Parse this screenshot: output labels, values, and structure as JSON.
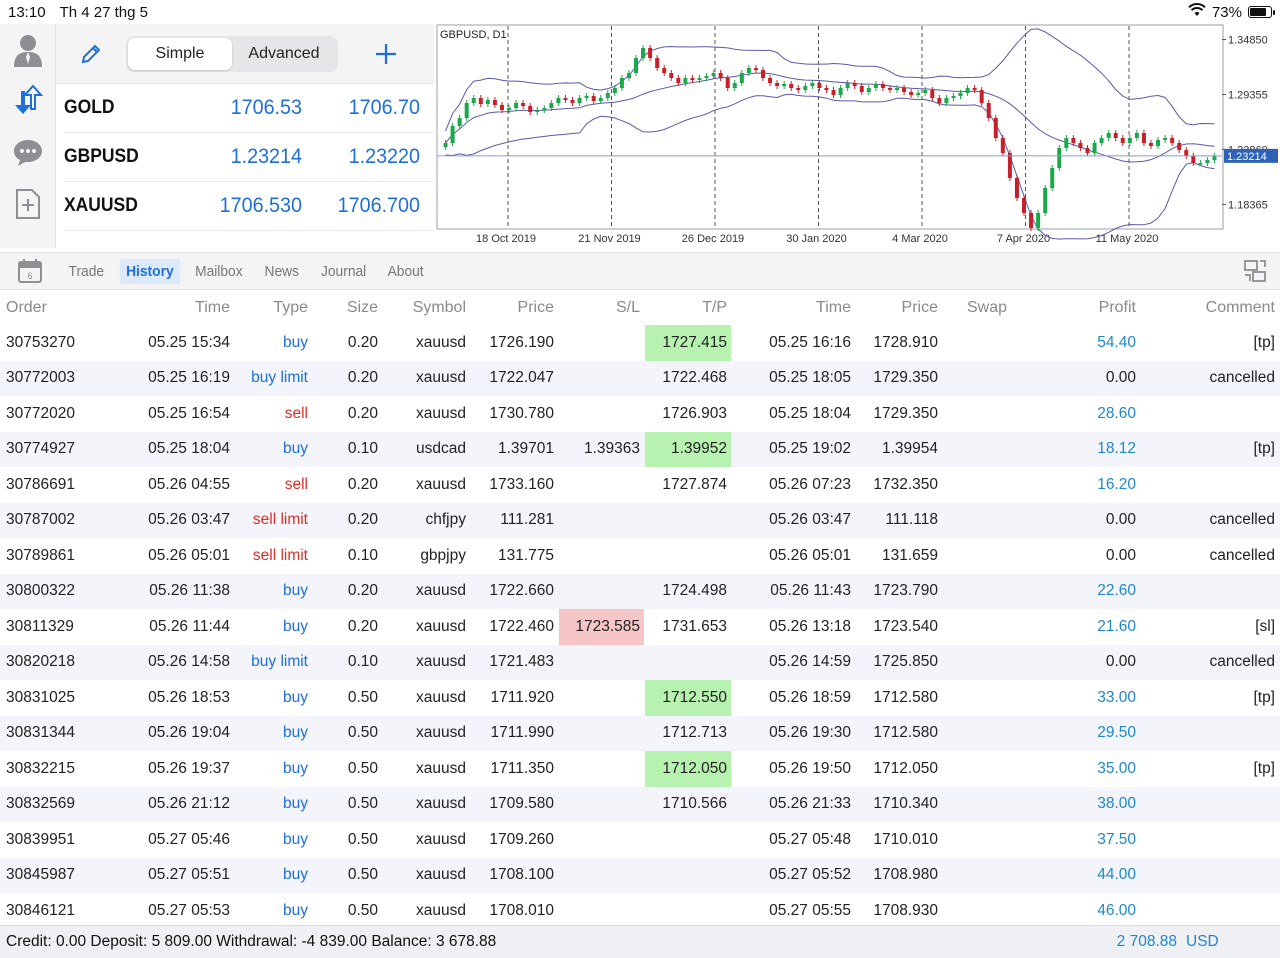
{
  "status_bar": {
    "time": "13:10",
    "date": "Th 4 27 thg 5",
    "battery": "73%"
  },
  "quotes": {
    "mode_simple": "Simple",
    "mode_advanced": "Advanced",
    "rows": [
      {
        "symbol": "GOLD",
        "bid": "1706.53",
        "ask": "1706.70"
      },
      {
        "symbol": "GBPUSD",
        "bid": "1.23214",
        "ask": "1.23220"
      },
      {
        "symbol": "XAUUSD",
        "bid": "1706.530",
        "ask": "1706.700"
      }
    ]
  },
  "chart_data": {
    "type": "candlestick",
    "title": "GBPUSD, D1",
    "current_price": "1.23214",
    "y_ticks": [
      "1.34850",
      "1.29355",
      "1.23860",
      "1.18365"
    ],
    "ylim": [
      1.16,
      1.36
    ],
    "x_labels": [
      "18 Oct 2019",
      "21 Nov 2019",
      "26 Dec 2019",
      "30 Jan 2020",
      "4 Mar 2020",
      "7 Apr 2020",
      "11 May 2020"
    ],
    "bollinger_bands": true,
    "grid": "vertical dashed",
    "close_series": [
      1.245,
      1.262,
      1.27,
      1.285,
      1.29,
      1.284,
      1.288,
      1.283,
      1.278,
      1.28,
      1.285,
      1.282,
      1.276,
      1.278,
      1.28,
      1.285,
      1.29,
      1.288,
      1.285,
      1.29,
      1.292,
      1.287,
      1.29,
      1.295,
      1.3,
      1.31,
      1.315,
      1.33,
      1.34,
      1.33,
      1.32,
      1.315,
      1.31,
      1.305,
      1.31,
      1.308,
      1.31,
      1.312,
      1.315,
      1.31,
      1.3,
      1.305,
      1.315,
      1.32,
      1.318,
      1.31,
      1.305,
      1.302,
      1.304,
      1.3,
      1.298,
      1.302,
      1.305,
      1.3,
      1.298,
      1.293,
      1.3,
      1.305,
      1.302,
      1.296,
      1.3,
      1.304,
      1.3,
      1.298,
      1.3,
      1.296,
      1.293,
      1.295,
      1.298,
      1.29,
      1.285,
      1.29,
      1.292,
      1.295,
      1.3,
      1.298,
      1.285,
      1.27,
      1.25,
      1.235,
      1.21,
      1.19,
      1.175,
      1.16,
      1.175,
      1.2,
      1.22,
      1.24,
      1.25,
      1.245,
      1.24,
      1.235,
      1.245,
      1.25,
      1.255,
      1.25,
      1.245,
      1.25,
      1.255,
      1.245,
      1.242,
      1.248,
      1.25,
      1.245,
      1.238,
      1.232,
      1.225,
      1.225,
      1.228,
      1.232
    ]
  },
  "tabs": [
    "Trade",
    "History",
    "Mailbox",
    "News",
    "Journal",
    "About"
  ],
  "active_tab": "History",
  "table": {
    "headers": {
      "order": "Order",
      "time": "Time",
      "type": "Type",
      "size": "Size",
      "symbol": "Symbol",
      "price": "Price",
      "sl": "S/L",
      "tp": "T/P",
      "time2": "Time",
      "price2": "Price",
      "swap": "Swap",
      "profit": "Profit",
      "comment": "Comment"
    },
    "rows": [
      {
        "order": "30753270",
        "time": "05.25 15:34",
        "type": "buy",
        "size": "0.20",
        "symbol": "xauusd",
        "price": "1726.190",
        "sl": "",
        "tp": "1727.415",
        "time2": "05.25 16:16",
        "price2": "1728.910",
        "swap": "",
        "profit": "54.40",
        "comment": "[tp]",
        "hl_tp": true,
        "hl_sl": false
      },
      {
        "order": "30772003",
        "time": "05.25 16:19",
        "type": "buy limit",
        "size": "0.20",
        "symbol": "xauusd",
        "price": "1722.047",
        "sl": "",
        "tp": "1722.468",
        "time2": "05.25 18:05",
        "price2": "1729.350",
        "swap": "",
        "profit": "0.00",
        "comment": "cancelled",
        "hl_tp": false,
        "hl_sl": false
      },
      {
        "order": "30772020",
        "time": "05.25 16:54",
        "type": "sell",
        "size": "0.20",
        "symbol": "xauusd",
        "price": "1730.780",
        "sl": "",
        "tp": "1726.903",
        "time2": "05.25 18:04",
        "price2": "1729.350",
        "swap": "",
        "profit": "28.60",
        "comment": "",
        "hl_tp": false,
        "hl_sl": false
      },
      {
        "order": "30774927",
        "time": "05.25 18:04",
        "type": "buy",
        "size": "0.10",
        "symbol": "usdcad",
        "price": "1.39701",
        "sl": "1.39363",
        "tp": "1.39952",
        "time2": "05.25 19:02",
        "price2": "1.39954",
        "swap": "",
        "profit": "18.12",
        "comment": "[tp]",
        "hl_tp": true,
        "hl_sl": false
      },
      {
        "order": "30786691",
        "time": "05.26 04:55",
        "type": "sell",
        "size": "0.20",
        "symbol": "xauusd",
        "price": "1733.160",
        "sl": "",
        "tp": "1727.874",
        "time2": "05.26 07:23",
        "price2": "1732.350",
        "swap": "",
        "profit": "16.20",
        "comment": "",
        "hl_tp": false,
        "hl_sl": false
      },
      {
        "order": "30787002",
        "time": "05.26 03:47",
        "type": "sell limit",
        "size": "0.20",
        "symbol": "chfjpy",
        "price": "111.281",
        "sl": "",
        "tp": "",
        "time2": "05.26 03:47",
        "price2": "111.118",
        "swap": "",
        "profit": "0.00",
        "comment": "cancelled",
        "hl_tp": false,
        "hl_sl": false
      },
      {
        "order": "30789861",
        "time": "05.26 05:01",
        "type": "sell limit",
        "size": "0.10",
        "symbol": "gbpjpy",
        "price": "131.775",
        "sl": "",
        "tp": "",
        "time2": "05.26 05:01",
        "price2": "131.659",
        "swap": "",
        "profit": "0.00",
        "comment": "cancelled",
        "hl_tp": false,
        "hl_sl": false
      },
      {
        "order": "30800322",
        "time": "05.26 11:38",
        "type": "buy",
        "size": "0.20",
        "symbol": "xauusd",
        "price": "1722.660",
        "sl": "",
        "tp": "1724.498",
        "time2": "05.26 11:43",
        "price2": "1723.790",
        "swap": "",
        "profit": "22.60",
        "comment": "",
        "hl_tp": false,
        "hl_sl": false
      },
      {
        "order": "30811329",
        "time": "05.26 11:44",
        "type": "buy",
        "size": "0.20",
        "symbol": "xauusd",
        "price": "1722.460",
        "sl": "1723.585",
        "tp": "1731.653",
        "time2": "05.26 13:18",
        "price2": "1723.540",
        "swap": "",
        "profit": "21.60",
        "comment": "[sl]",
        "hl_tp": false,
        "hl_sl": true
      },
      {
        "order": "30820218",
        "time": "05.26 14:58",
        "type": "buy limit",
        "size": "0.10",
        "symbol": "xauusd",
        "price": "1721.483",
        "sl": "",
        "tp": "",
        "time2": "05.26 14:59",
        "price2": "1725.850",
        "swap": "",
        "profit": "0.00",
        "comment": "cancelled",
        "hl_tp": false,
        "hl_sl": false
      },
      {
        "order": "30831025",
        "time": "05.26 18:53",
        "type": "buy",
        "size": "0.50",
        "symbol": "xauusd",
        "price": "1711.920",
        "sl": "",
        "tp": "1712.550",
        "time2": "05.26 18:59",
        "price2": "1712.580",
        "swap": "",
        "profit": "33.00",
        "comment": "[tp]",
        "hl_tp": true,
        "hl_sl": false
      },
      {
        "order": "30831344",
        "time": "05.26 19:04",
        "type": "buy",
        "size": "0.50",
        "symbol": "xauusd",
        "price": "1711.990",
        "sl": "",
        "tp": "1712.713",
        "time2": "05.26 19:30",
        "price2": "1712.580",
        "swap": "",
        "profit": "29.50",
        "comment": "",
        "hl_tp": false,
        "hl_sl": false
      },
      {
        "order": "30832215",
        "time": "05.26 19:37",
        "type": "buy",
        "size": "0.50",
        "symbol": "xauusd",
        "price": "1711.350",
        "sl": "",
        "tp": "1712.050",
        "time2": "05.26 19:50",
        "price2": "1712.050",
        "swap": "",
        "profit": "35.00",
        "comment": "[tp]",
        "hl_tp": true,
        "hl_sl": false
      },
      {
        "order": "30832569",
        "time": "05.26 21:12",
        "type": "buy",
        "size": "0.50",
        "symbol": "xauusd",
        "price": "1709.580",
        "sl": "",
        "tp": "1710.566",
        "time2": "05.26 21:33",
        "price2": "1710.340",
        "swap": "",
        "profit": "38.00",
        "comment": "",
        "hl_tp": false,
        "hl_sl": false
      },
      {
        "order": "30839951",
        "time": "05.27 05:46",
        "type": "buy",
        "size": "0.50",
        "symbol": "xauusd",
        "price": "1709.260",
        "sl": "",
        "tp": "",
        "time2": "05.27 05:48",
        "price2": "1710.010",
        "swap": "",
        "profit": "37.50",
        "comment": "",
        "hl_tp": false,
        "hl_sl": false
      },
      {
        "order": "30845987",
        "time": "05.27 05:51",
        "type": "buy",
        "size": "0.50",
        "symbol": "xauusd",
        "price": "1708.100",
        "sl": "",
        "tp": "",
        "time2": "05.27 05:52",
        "price2": "1708.980",
        "swap": "",
        "profit": "44.00",
        "comment": "",
        "hl_tp": false,
        "hl_sl": false
      },
      {
        "order": "30846121",
        "time": "05.27 05:53",
        "type": "buy",
        "size": "0.50",
        "symbol": "xauusd",
        "price": "1708.010",
        "sl": "",
        "tp": "",
        "time2": "05.27 05:55",
        "price2": "1708.930",
        "swap": "",
        "profit": "46.00",
        "comment": "",
        "hl_tp": false,
        "hl_sl": false
      }
    ]
  },
  "footer": {
    "summary": "Credit: 0.00 Deposit: 5 809.00 Withdrawal: -4 839.00 Balance: 3 678.88",
    "total": "2 708.88",
    "currency": "USD"
  },
  "colors": {
    "accent": "#1e6fd9",
    "sell": "#d9302b",
    "profit": "#1e88c9",
    "tp_highlight": "#b8f2b0",
    "sl_highlight": "#f6c6c6",
    "bull_candle": "#1aa84a",
    "bear_candle": "#c8202a"
  }
}
